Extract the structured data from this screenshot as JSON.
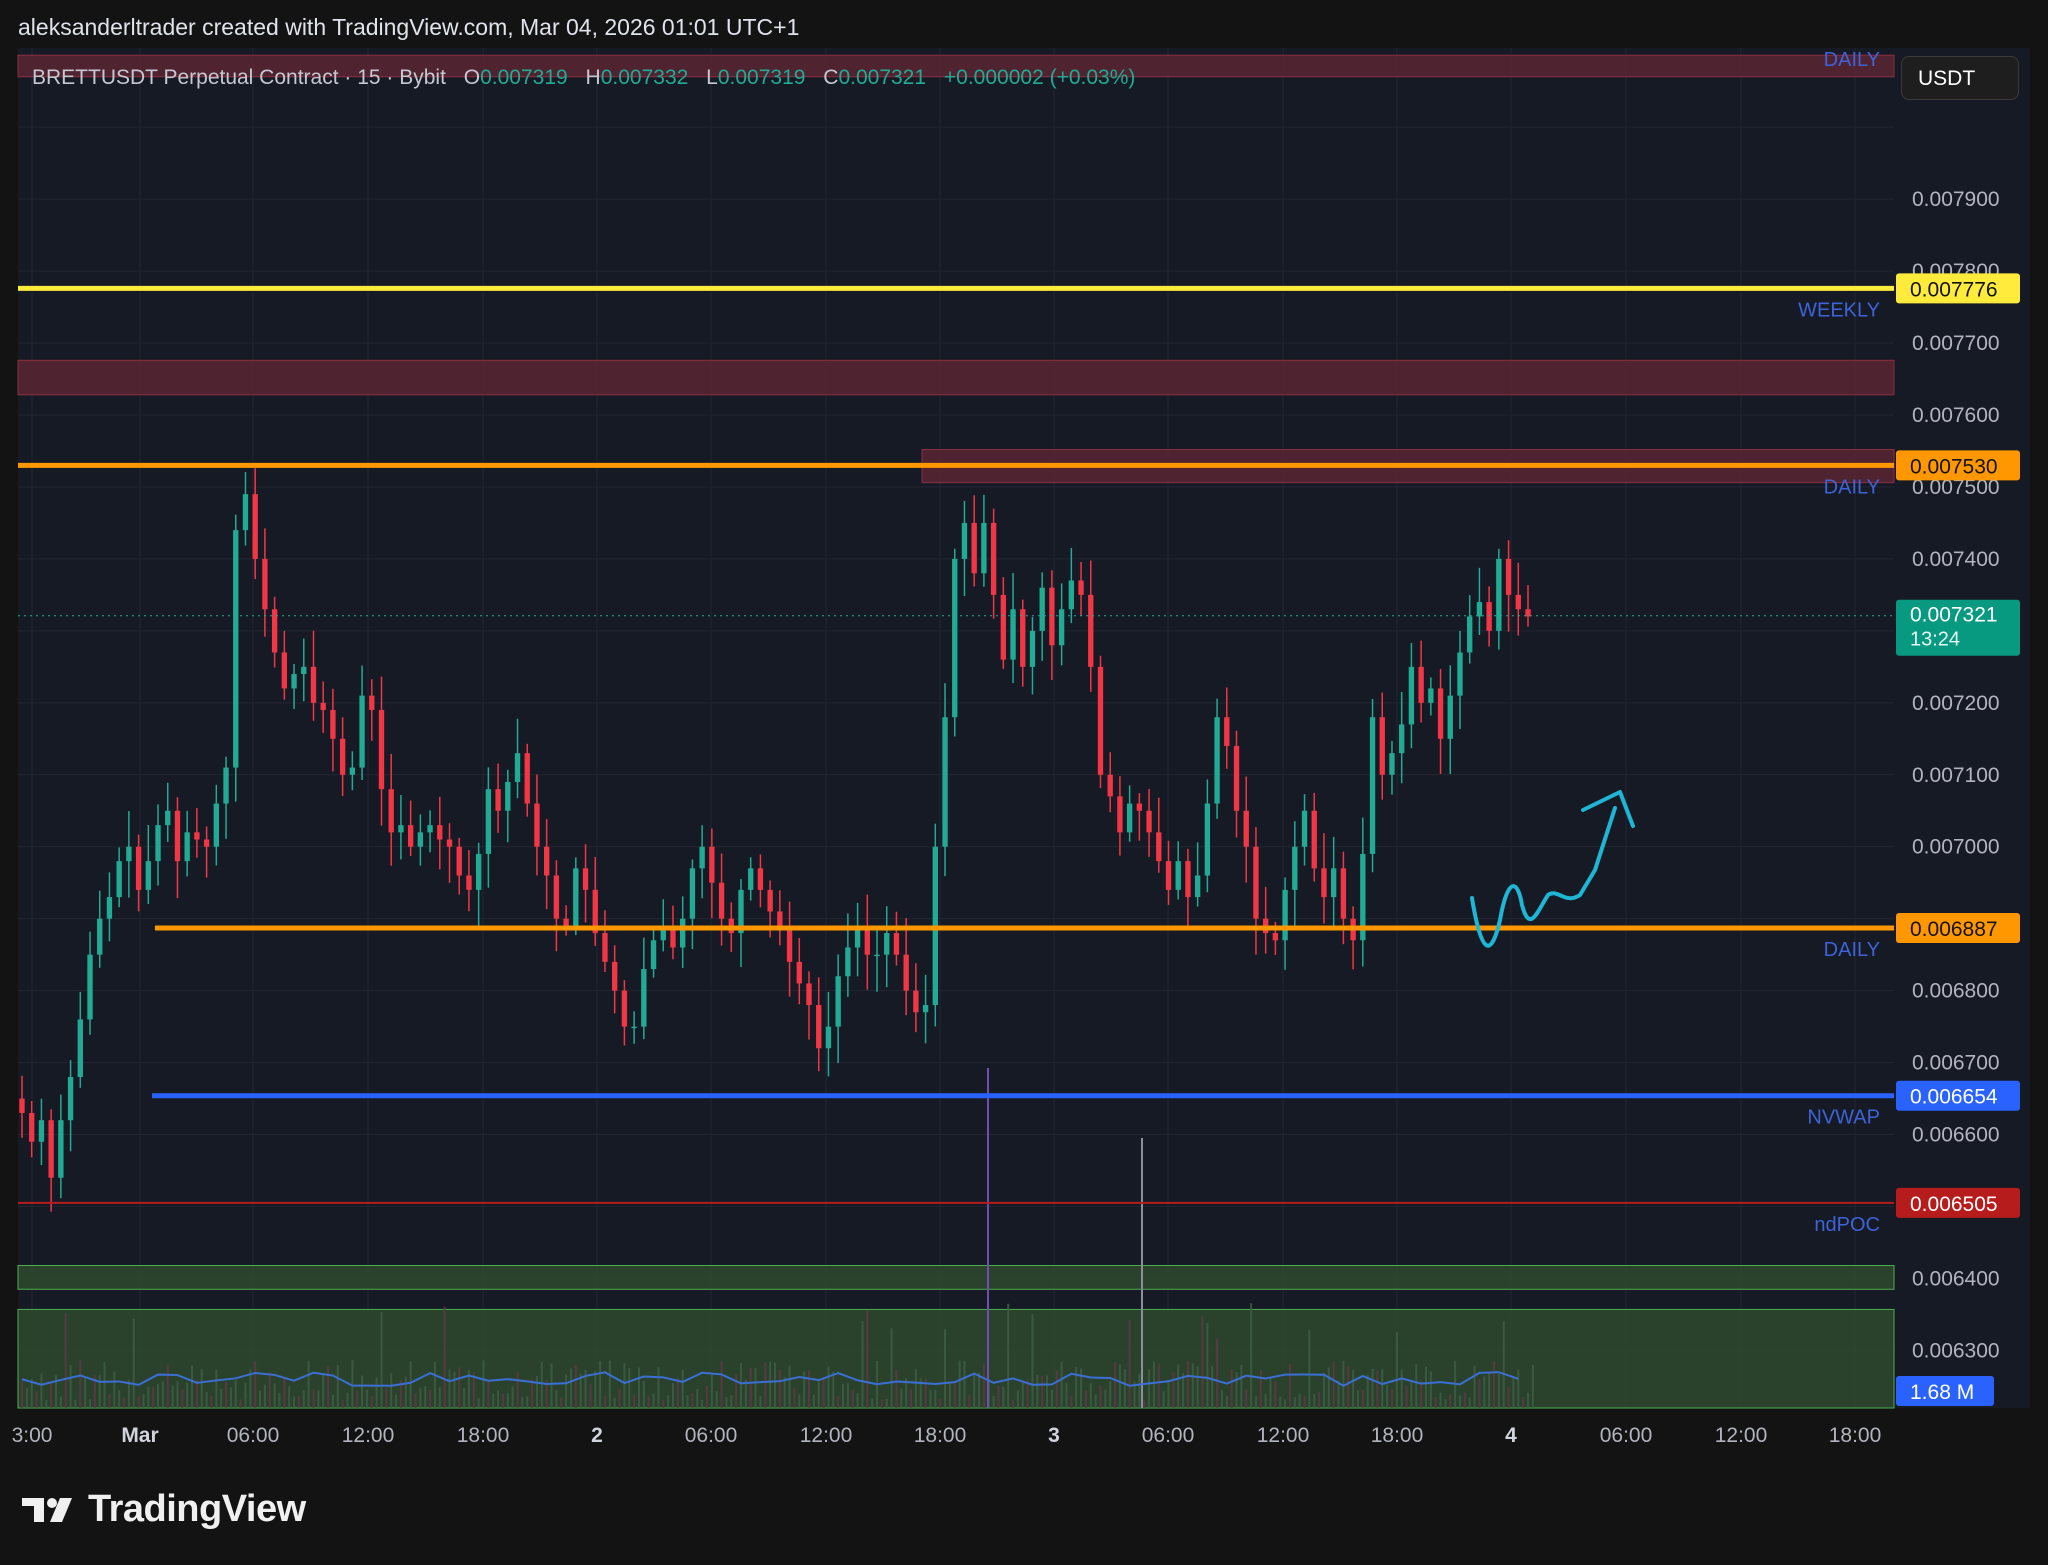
{
  "header": {
    "attribution": "aleksanderltrader created with TradingView.com, Mar 04, 2026 01:01 UTC+1"
  },
  "legend": {
    "symbol": "BRETTUSDT Perpetual Contract · 15 · Bybit",
    "o_label": "O",
    "o_value": "0.007319",
    "h_label": "H",
    "h_value": "0.007332",
    "l_label": "L",
    "l_value": "0.007319",
    "c_label": "C",
    "c_value": "0.007321",
    "change": "+0.000002 (+0.03%)"
  },
  "currency_button": "USDT",
  "footer": {
    "brand": "TradingView"
  },
  "colors": {
    "background": "#161a25",
    "grid": "#232632",
    "up": "#22ab94",
    "down": "#f23645",
    "weekly": "#ffeb3b",
    "daily": "#ff9800",
    "nvwap": "#2962ff",
    "ndpoc": "#b71c1c",
    "label_text": "#3d63d9",
    "projection": "#1fb6d6",
    "zone_red": "#5a2634",
    "zone_green": "#2e4a2e"
  },
  "chart_data": {
    "type": "candlestick",
    "y_axis": {
      "range": [
        0.00622,
        0.00811
      ],
      "tick_labels": [
        "0.007900",
        "0.007800",
        "0.007700",
        "0.007600",
        "0.007500",
        "0.007400",
        "0.007200",
        "0.007100",
        "0.007000",
        "0.006800",
        "0.006700",
        "0.006600",
        "0.006400",
        "0.006300"
      ]
    },
    "x_axis": {
      "tick_labels": [
        "3:00",
        "Mar",
        "06:00",
        "12:00",
        "18:00",
        "2",
        "06:00",
        "12:00",
        "18:00",
        "3",
        "06:00",
        "12:00",
        "18:00",
        "4",
        "06:00",
        "12:00",
        "18:00"
      ]
    },
    "levels": [
      {
        "price": 0.007776,
        "label": "0.007776",
        "name": "WEEKLY",
        "color": "#ffeb3b"
      },
      {
        "price": 0.00753,
        "label": "0.007530",
        "name": "DAILY",
        "color": "#ff9800"
      },
      {
        "price": 0.006887,
        "label": "0.006887",
        "name": "DAILY",
        "color": "#ff9800"
      },
      {
        "price": 0.006654,
        "label": "0.006654",
        "name": "NVWAP",
        "color": "#2962ff"
      },
      {
        "price": 0.006505,
        "label": "0.006505",
        "name": "ndPOC",
        "color": "#b71c1c"
      }
    ],
    "top_level_name": "DAILY",
    "last_price": {
      "label": "0.007321",
      "countdown": "13:24",
      "price": 0.007321
    },
    "volume_label": "1.68 M",
    "zones": [
      {
        "top": 0.0081,
        "bottom": 0.00807,
        "type": "resistance"
      },
      {
        "top": 0.007676,
        "bottom": 0.007628,
        "type": "resistance"
      },
      {
        "top": 0.007552,
        "bottom": 0.007506,
        "type": "resistance"
      },
      {
        "top": 0.006418,
        "bottom": 0.006385,
        "type": "support"
      },
      {
        "top": 0.006357,
        "bottom": 0.00622,
        "type": "support"
      }
    ],
    "closes": [
      0.00663,
      0.00659,
      0.00662,
      0.00654,
      0.00662,
      0.00668,
      0.00676,
      0.00685,
      0.0069,
      0.00693,
      0.00698,
      0.007,
      0.00694,
      0.00698,
      0.00703,
      0.00705,
      0.00698,
      0.00702,
      0.00701,
      0.007,
      0.00706,
      0.00711,
      0.00744,
      0.00749,
      0.0074,
      0.00733,
      0.00727,
      0.00722,
      0.00724,
      0.00725,
      0.0072,
      0.00719,
      0.00715,
      0.0071,
      0.00711,
      0.00721,
      0.00719,
      0.00708,
      0.00702,
      0.00703,
      0.007,
      0.00702,
      0.00703,
      0.00701,
      0.007,
      0.00696,
      0.00694,
      0.00699,
      0.00708,
      0.00705,
      0.00709,
      0.00713,
      0.00706,
      0.007,
      0.00696,
      0.0069,
      0.00689,
      0.00697,
      0.00694,
      0.00688,
      0.00684,
      0.0068,
      0.00675,
      0.00675,
      0.00683,
      0.00687,
      0.00689,
      0.00686,
      0.0069,
      0.00697,
      0.007,
      0.00695,
      0.0069,
      0.00688,
      0.00694,
      0.00697,
      0.00694,
      0.00691,
      0.00689,
      0.00684,
      0.00681,
      0.00678,
      0.00672,
      0.00675,
      0.00682,
      0.00686,
      0.00689,
      0.00685,
      0.00685,
      0.00688,
      0.00685,
      0.0068,
      0.00677,
      0.00678,
      0.007,
      0.00718,
      0.0074,
      0.00745,
      0.00738,
      0.00745,
      0.00735,
      0.00726,
      0.00733,
      0.00725,
      0.0073,
      0.00736,
      0.00728,
      0.00733,
      0.00737,
      0.00735,
      0.00725,
      0.0071,
      0.00707,
      0.00702,
      0.00706,
      0.00705,
      0.00702,
      0.00698,
      0.00694,
      0.00698,
      0.00693,
      0.00696,
      0.00706,
      0.00718,
      0.00714,
      0.00705,
      0.007,
      0.0069,
      0.00688,
      0.00687,
      0.00694,
      0.007,
      0.00705,
      0.00697,
      0.00693,
      0.00697,
      0.0069,
      0.00687,
      0.00699,
      0.00718,
      0.0071,
      0.00713,
      0.00717,
      0.00725,
      0.0072,
      0.00722,
      0.00715,
      0.00721,
      0.00727,
      0.00732,
      0.00734,
      0.0073,
      0.0074,
      0.00735,
      0.00733,
      0.00732
    ]
  }
}
